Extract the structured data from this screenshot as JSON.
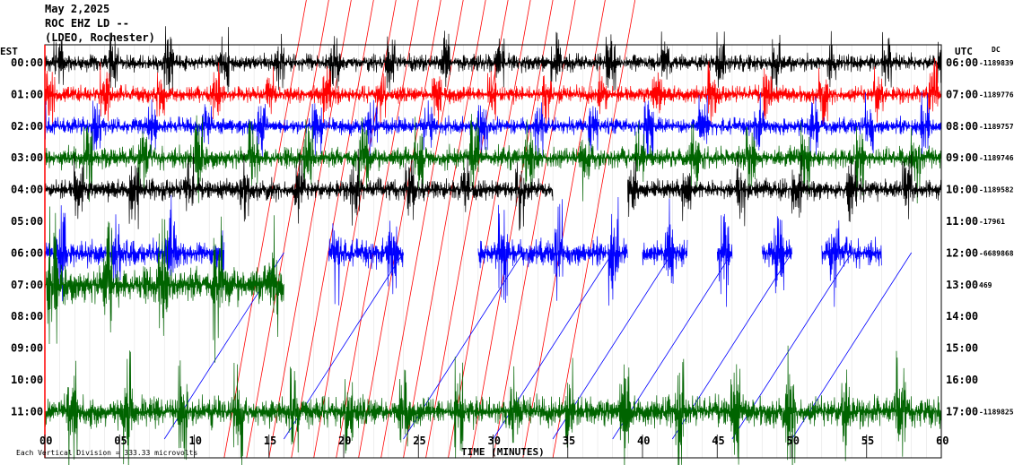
{
  "header": {
    "date": "May 2,2025",
    "station": "ROC EHZ LD --",
    "network": "(LDEO, Rochester)"
  },
  "left_axis_title": "EST",
  "right_axis_title": "UTC",
  "dc_title": "DC",
  "x_axis_title": "TIME (MINUTES)",
  "footer": "Each Vertical Division = 333.33 microvolts",
  "colors": {
    "black": "#000000",
    "red": "#ff0000",
    "blue": "#0000ff",
    "green": "#006400"
  },
  "chart_data": {
    "type": "line",
    "title": "May 2,2025",
    "xlabel": "TIME (MINUTES)",
    "ylabel": "EST",
    "xlim": [
      0,
      60
    ],
    "x_ticks": [
      "00",
      "05",
      "10",
      "15",
      "20",
      "25",
      "30",
      "35",
      "40",
      "45",
      "50",
      "55",
      "60"
    ],
    "rows": [
      {
        "est": "00:00",
        "utc": "06:00",
        "dc": "-1189839",
        "color": "black",
        "active": [
          [
            0,
            60
          ]
        ],
        "amp": 1.0
      },
      {
        "est": "01:00",
        "utc": "07:00",
        "dc": "-1189776",
        "color": "red",
        "active": [
          [
            0,
            60
          ]
        ],
        "amp": 1.0
      },
      {
        "est": "02:00",
        "utc": "08:00",
        "dc": "-1189757",
        "color": "blue",
        "active": [
          [
            0,
            60
          ]
        ],
        "amp": 1.0
      },
      {
        "est": "03:00",
        "utc": "09:00",
        "dc": "-1189746",
        "color": "green",
        "active": [
          [
            0,
            60
          ]
        ],
        "amp": 1.3
      },
      {
        "est": "04:00",
        "utc": "10:00",
        "dc": "-1189582",
        "color": "black",
        "active": [
          [
            0,
            34
          ],
          [
            39,
            60
          ]
        ],
        "amp": 1.2
      },
      {
        "est": "05:00",
        "utc": "11:00",
        "dc": "-17961",
        "color": "red",
        "active": [],
        "amp": 0.0
      },
      {
        "est": "06:00",
        "utc": "12:00",
        "dc": "-6689868",
        "color": "blue",
        "active": [
          [
            0,
            12
          ],
          [
            19,
            24
          ],
          [
            29,
            37
          ],
          [
            37,
            39
          ],
          [
            40,
            43
          ],
          [
            45,
            46
          ],
          [
            48,
            50
          ],
          [
            52,
            56
          ]
        ],
        "amp": 1.6
      },
      {
        "est": "07:00",
        "utc": "13:00",
        "dc": "469",
        "color": "green",
        "active": [
          [
            0,
            16
          ]
        ],
        "amp": 2.2
      },
      {
        "est": "08:00",
        "utc": "14:00",
        "dc": "",
        "color": "black",
        "active": [],
        "amp": 0.0
      },
      {
        "est": "09:00",
        "utc": "15:00",
        "dc": "",
        "color": "red",
        "active": [],
        "amp": 0.0
      },
      {
        "est": "10:00",
        "utc": "16:00",
        "dc": "",
        "color": "blue",
        "active": [],
        "amp": 0.0
      },
      {
        "est": "11:00",
        "utc": "17:00",
        "dc": "-1189825",
        "color": "green",
        "active": [
          [
            0,
            60
          ]
        ],
        "amp": 1.8
      }
    ]
  }
}
